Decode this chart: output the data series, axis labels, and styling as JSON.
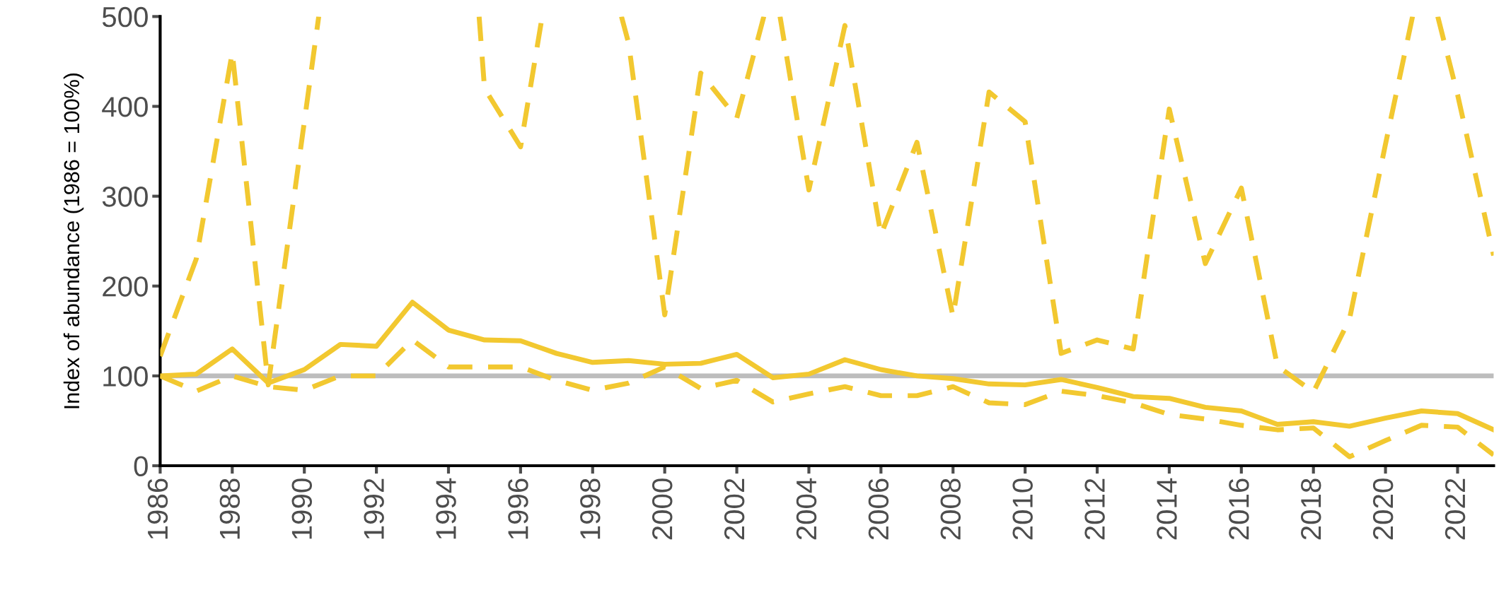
{
  "chart_data": {
    "type": "line",
    "ylabel": "Index of abundance (1986 = 100%)",
    "x": [
      1986,
      1987,
      1988,
      1989,
      1990,
      1991,
      1992,
      1993,
      1994,
      1995,
      1996,
      1997,
      1998,
      1999,
      2000,
      2001,
      2002,
      2003,
      2004,
      2005,
      2006,
      2007,
      2008,
      2009,
      2010,
      2011,
      2012,
      2013,
      2014,
      2015,
      2016,
      2017,
      2018,
      2019,
      2020,
      2021,
      2022,
      2023
    ],
    "series": [
      {
        "color": "#f2c830",
        "line_style": "solid",
        "values": [
          100,
          102,
          130,
          92,
          107,
          135,
          133,
          182,
          151,
          140,
          139,
          125,
          115,
          117,
          113,
          114,
          124,
          98,
          102,
          118,
          107,
          100,
          97,
          91,
          90,
          96,
          87,
          77,
          75,
          65,
          61,
          46,
          49,
          44,
          53,
          61,
          58,
          40
        ]
      },
      {
        "color": "#f2c830",
        "line_style": "dashed",
        "values": [
          100,
          83,
          100,
          88,
          84,
          100,
          100,
          140,
          110,
          110,
          110,
          95,
          84,
          92,
          110,
          86,
          95,
          71,
          80,
          88,
          78,
          78,
          88,
          70,
          68,
          83,
          78,
          70,
          57,
          52,
          45,
          40,
          42,
          10,
          28,
          45,
          43,
          12
        ]
      },
      {
        "color": "#f2c830",
        "line_style": "dashed",
        "x": [
          1986,
          1987,
          1988,
          1989,
          1990.4,
          1992,
          1994.85,
          1995,
          1996,
          1996.6,
          1998,
          1998.8,
          1999,
          2000,
          2001,
          2002,
          2002.75,
          2003,
          2003.2,
          2004,
          2005,
          2006,
          2007,
          2008,
          2009,
          2010,
          2011,
          2012,
          2013,
          2014,
          2015,
          2016,
          2017,
          2018,
          2019,
          2020,
          2020.75,
          2021,
          2021.45,
          2022,
          2023
        ],
        "values": [
          122,
          230,
          460,
          90,
          500,
          null,
          500,
          420,
          355,
          500,
          null,
          500,
          470,
          168,
          437,
          387,
          500,
          null,
          500,
          307,
          490,
          257,
          360,
          166,
          416,
          383,
          125,
          140,
          130,
          397,
          225,
          309,
          111,
          82,
          163,
          358,
          500,
          null,
          500,
          413,
          234
        ]
      }
    ],
    "ref_lines": [
      {
        "axis": "y",
        "value": 100,
        "color": "#bdbdbd"
      }
    ],
    "xlim": [
      1986,
      2023
    ],
    "xticks": [
      1986,
      1988,
      1990,
      1992,
      1994,
      1996,
      1998,
      2000,
      2002,
      2004,
      2006,
      2008,
      2010,
      2012,
      2014,
      2016,
      2018,
      2020,
      2022
    ],
    "ylim": [
      0,
      500
    ],
    "yticks": [
      0,
      100,
      200,
      300,
      400,
      500
    ],
    "grid": false,
    "legend": false,
    "marker": "none"
  }
}
